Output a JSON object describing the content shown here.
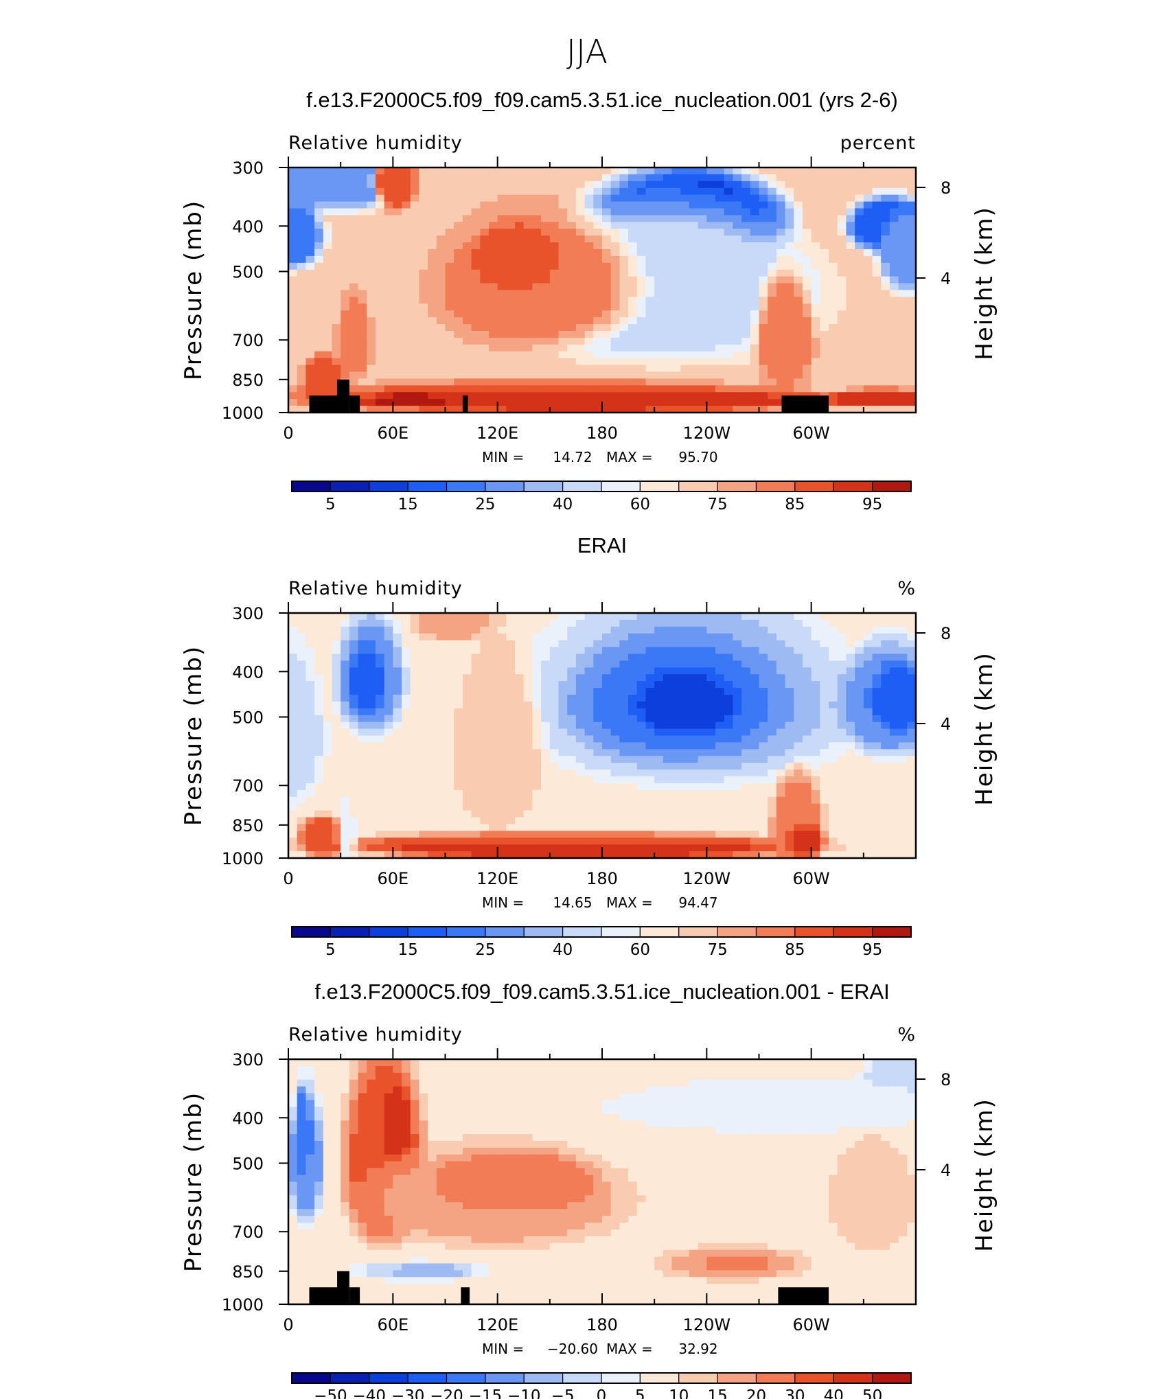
{
  "figure": {
    "title": "JJA"
  },
  "chart_data": [
    {
      "type": "heatmap",
      "title": "f.e13.F2000C5.f09_f09.cam5.3.51.ice_nucleation.001 (yrs 2-6)",
      "left_label": "Relative humidity",
      "right_label": "percent",
      "ylabel": "Pressure (mb)",
      "ylabel_right": "Height (km)",
      "x_ticks": [
        "0",
        "60E",
        "120E",
        "180",
        "120W",
        "60W"
      ],
      "y_ticks": [
        "300",
        "400",
        "500",
        "700",
        "850",
        "1000"
      ],
      "y_ticks_right": [
        "8",
        "4"
      ],
      "ylim": [
        1000,
        300
      ],
      "y_scale": "log",
      "min_label": "MIN =",
      "min": "14.72",
      "max_label": "MAX =",
      "max": "95.70",
      "colorbar_labels": [
        "5",
        "15",
        "25",
        "40",
        "60",
        "75",
        "85",
        "95"
      ],
      "colorbar_levels": [
        5,
        10,
        15,
        20,
        25,
        30,
        40,
        50,
        60,
        65,
        75,
        80,
        85,
        90,
        95
      ],
      "topography_masked": true
    },
    {
      "type": "heatmap",
      "title": "ERAI",
      "left_label": "Relative humidity",
      "right_label": "%",
      "ylabel": "Pressure (mb)",
      "ylabel_right": "Height (km)",
      "x_ticks": [
        "0",
        "60E",
        "120E",
        "180",
        "120W",
        "60W"
      ],
      "y_ticks": [
        "300",
        "400",
        "500",
        "700",
        "850",
        "1000"
      ],
      "y_ticks_right": [
        "8",
        "4"
      ],
      "ylim": [
        1000,
        300
      ],
      "y_scale": "log",
      "min_label": "MIN =",
      "min": "14.65",
      "max_label": "MAX =",
      "max": "94.47",
      "colorbar_labels": [
        "5",
        "15",
        "25",
        "40",
        "60",
        "75",
        "85",
        "95"
      ],
      "colorbar_levels": [
        5,
        10,
        15,
        20,
        25,
        30,
        40,
        50,
        60,
        65,
        75,
        80,
        85,
        90,
        95
      ],
      "topography_masked": false
    },
    {
      "type": "heatmap",
      "title": "f.e13.F2000C5.f09_f09.cam5.3.51.ice_nucleation.001 - ERAI",
      "left_label": "Relative humidity",
      "right_label": "%",
      "ylabel": "Pressure (mb)",
      "ylabel_right": "Height (km)",
      "x_ticks": [
        "0",
        "60E",
        "120E",
        "180",
        "120W",
        "60W"
      ],
      "y_ticks": [
        "300",
        "400",
        "500",
        "700",
        "850",
        "1000"
      ],
      "y_ticks_right": [
        "8",
        "4"
      ],
      "ylim": [
        1000,
        300
      ],
      "y_scale": "log",
      "min_label": "MIN =",
      "min": "−20.60",
      "max_label": "MAX =",
      "max": "32.92",
      "colorbar_labels": [
        "−50",
        "−40",
        "−30",
        "−20",
        "−15",
        "−10",
        "−5",
        "0",
        "5",
        "10",
        "15",
        "20",
        "30",
        "40",
        "50"
      ],
      "colorbar_levels": [
        -50,
        -40,
        -30,
        -20,
        -15,
        -10,
        -5,
        0,
        5,
        10,
        15,
        20,
        30,
        40,
        50
      ],
      "topography_masked": true
    }
  ],
  "palette": [
    "#08088c",
    "#0a1fb4",
    "#0d3fdc",
    "#1f5ef5",
    "#3b78f5",
    "#6a97f3",
    "#9dbaf3",
    "#c8daf7",
    "#eaf1fb",
    "#fde9d8",
    "#f9ccb2",
    "#f4a483",
    "#f17c56",
    "#e9532c",
    "#d4331a",
    "#b0190f",
    "#8a0b07"
  ],
  "mask_color": "#000000"
}
